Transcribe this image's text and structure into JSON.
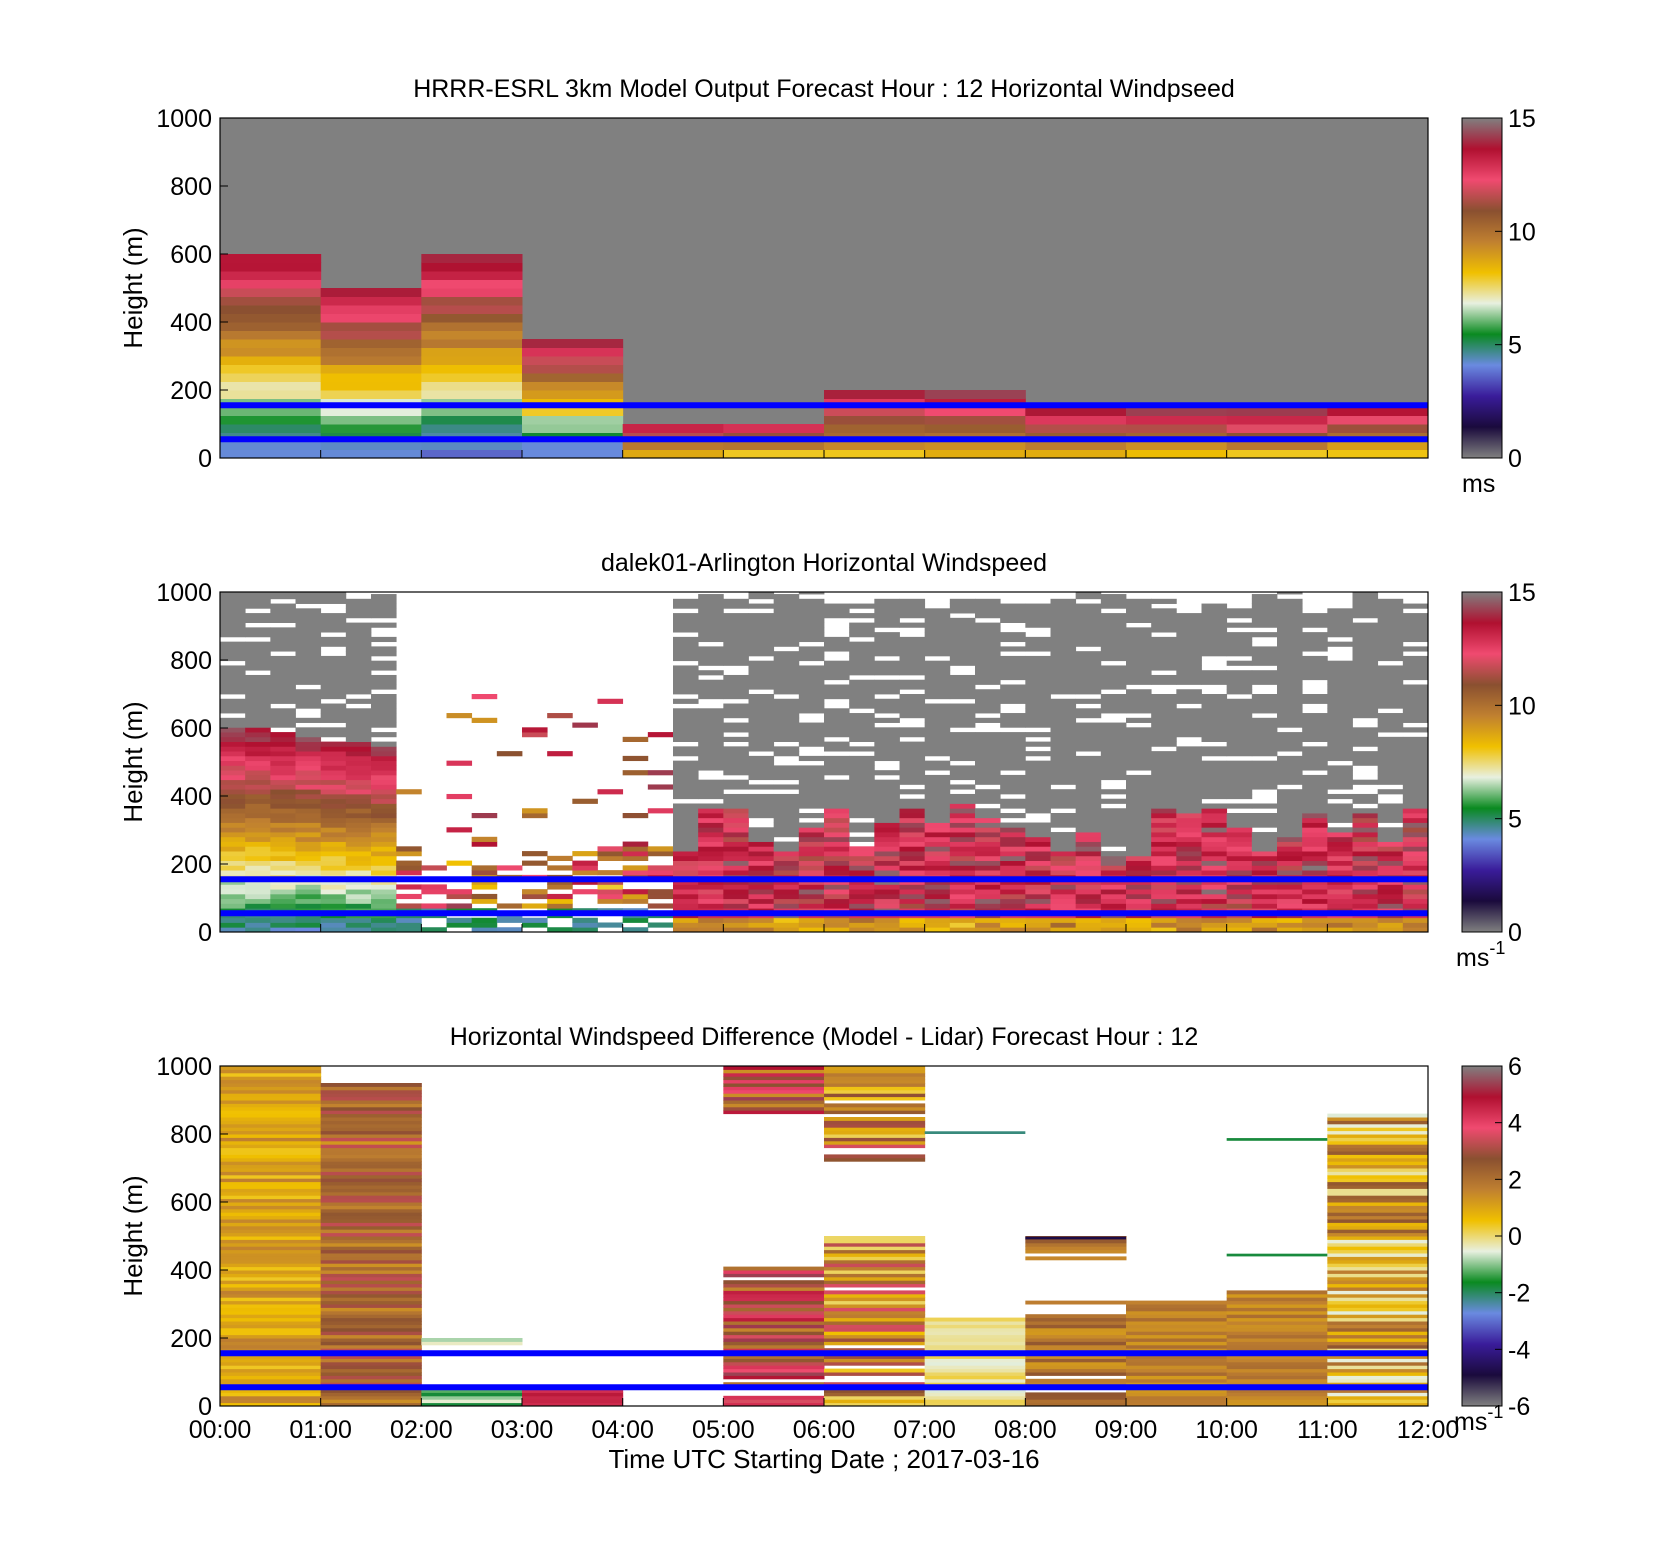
{
  "colors": {
    "missing": "#808080",
    "reference_lines": "#0000ff",
    "background": "#ffffff",
    "colormap": [
      "#808080",
      "#1a0a3c",
      "#3a1c9a",
      "#6a8ae0",
      "#0a8a20",
      "#e8f0e0",
      "#f0c000",
      "#c08030",
      "#8a5030",
      "#f04a70",
      "#b01030",
      "#808080"
    ]
  },
  "time_ticks": [
    "00:00",
    "01:00",
    "02:00",
    "03:00",
    "04:00",
    "05:00",
    "06:00",
    "07:00",
    "08:00",
    "09:00",
    "10:00",
    "11:00",
    "12:00"
  ],
  "x_axis_label": "Time UTC  Starting Date ; 2017-03-16",
  "chart_data": [
    {
      "type": "heatmap",
      "title": "HRRR-ESRL 3km Model Output   Forecast Hour : 12 Horizontal Windpseed",
      "ylabel": "Height (m)",
      "yticks": [
        "0",
        "200",
        "400",
        "600",
        "800",
        "1000"
      ],
      "ylim": [
        0,
        1000
      ],
      "xlim_hours": [
        0,
        12
      ],
      "colorbar": {
        "ticks": [
          "0",
          "5",
          "10",
          "15"
        ],
        "range": [
          0,
          15
        ],
        "unit": "ms"
      },
      "reference_lines_m": [
        155,
        55
      ],
      "columns": [
        {
          "hour": 0,
          "top_m": 600
        },
        {
          "hour": 1,
          "top_m": 500
        },
        {
          "hour": 2,
          "top_m": 600
        },
        {
          "hour": 3,
          "top_m": 350
        },
        {
          "hour": 4,
          "top_m": 100
        },
        {
          "hour": 5,
          "top_m": 100
        },
        {
          "hour": 6,
          "top_m": 200
        },
        {
          "hour": 7,
          "top_m": 180
        },
        {
          "hour": 8,
          "top_m": 130
        },
        {
          "hour": 9,
          "top_m": 130
        },
        {
          "hour": 10,
          "top_m": 130
        },
        {
          "hour": 11,
          "top_m": 150
        }
      ]
    },
    {
      "type": "heatmap",
      "title": "dalek01-Arlington  Horizontal Windspeed",
      "ylabel": "Height (m)",
      "yticks": [
        "0",
        "200",
        "400",
        "600",
        "800",
        "1000"
      ],
      "ylim": [
        0,
        1000
      ],
      "xlim_hours": [
        0,
        12
      ],
      "colorbar": {
        "ticks": [
          "0",
          "5",
          "10",
          "15"
        ],
        "range": [
          0,
          15
        ],
        "unit": "ms",
        "unit_exp": "-1"
      },
      "reference_lines_m": [
        155,
        55
      ]
    },
    {
      "type": "heatmap",
      "title": "Horizontal Windspeed Difference (Model - Lidar) Forecast Hour : 12",
      "ylabel": "Height (m)",
      "yticks": [
        "0",
        "200",
        "400",
        "600",
        "800",
        "1000"
      ],
      "ylim": [
        0,
        1000
      ],
      "xlim_hours": [
        0,
        12
      ],
      "colorbar": {
        "ticks": [
          "-6",
          "-4",
          "-2",
          "0",
          "2",
          "4",
          "6"
        ],
        "range": [
          -6,
          6
        ],
        "unit": "ms",
        "unit_exp": "-1"
      },
      "reference_lines_m": [
        155,
        55
      ]
    }
  ]
}
